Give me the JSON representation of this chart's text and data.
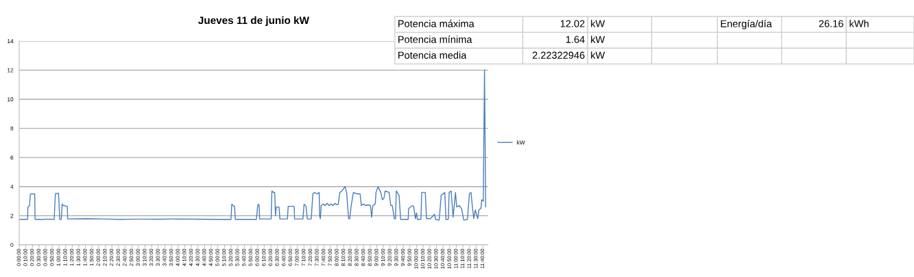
{
  "chart_data": [
    {
      "type": "line",
      "title": "Jueves 11 de junio kW",
      "grid": "y",
      "legend": "right",
      "marker": "none",
      "line_style": "solid",
      "xlim": [
        0,
        11.8
      ],
      "ylim": [
        0,
        14
      ],
      "yticks": [
        0,
        2,
        4,
        6,
        8,
        10,
        12,
        14
      ],
      "xticks": [
        {
          "value": 0,
          "label": "0:00:00"
        },
        {
          "value": 0.1667,
          "label": "0:10:00"
        },
        {
          "value": 0.3333,
          "label": "0:20:00"
        },
        {
          "value": 0.5,
          "label": "0:30:00"
        },
        {
          "value": 0.6667,
          "label": "0:40:00"
        },
        {
          "value": 0.8333,
          "label": "0:50:00"
        },
        {
          "value": 1,
          "label": "1:00:00"
        },
        {
          "value": 1.1667,
          "label": "1:10:00"
        },
        {
          "value": 1.3333,
          "label": "1:20:00"
        },
        {
          "value": 1.5,
          "label": "1:30:00"
        },
        {
          "value": 1.6667,
          "label": "1:40:00"
        },
        {
          "value": 1.8333,
          "label": "1:50:00"
        },
        {
          "value": 2,
          "label": "2:00:00"
        },
        {
          "value": 2.1667,
          "label": "2:10:00"
        },
        {
          "value": 2.3333,
          "label": "2:20:00"
        },
        {
          "value": 2.5,
          "label": "2:30:00"
        },
        {
          "value": 2.6667,
          "label": "2:40:00"
        },
        {
          "value": 2.8333,
          "label": "2:50:00"
        },
        {
          "value": 3,
          "label": "3:00:00"
        },
        {
          "value": 3.1667,
          "label": "3:10:00"
        },
        {
          "value": 3.3333,
          "label": "3:20:00"
        },
        {
          "value": 3.5,
          "label": "3:30:00"
        },
        {
          "value": 3.6667,
          "label": "3:40:00"
        },
        {
          "value": 3.8333,
          "label": "3:50:00"
        },
        {
          "value": 4,
          "label": "4:00:00"
        },
        {
          "value": 4.1667,
          "label": "4:10:00"
        },
        {
          "value": 4.3333,
          "label": "4:20:00"
        },
        {
          "value": 4.5,
          "label": "4:30:00"
        },
        {
          "value": 4.6667,
          "label": "4:40:00"
        },
        {
          "value": 4.8333,
          "label": "4:50:00"
        },
        {
          "value": 5,
          "label": "5:00:00"
        },
        {
          "value": 5.1667,
          "label": "5:10:00"
        },
        {
          "value": 5.3333,
          "label": "5:20:00"
        },
        {
          "value": 5.5,
          "label": "5:30:00"
        },
        {
          "value": 5.6667,
          "label": "5:40:00"
        },
        {
          "value": 5.8333,
          "label": "5:50:00"
        },
        {
          "value": 6,
          "label": "6:00:00"
        },
        {
          "value": 6.1667,
          "label": "6:10:00"
        },
        {
          "value": 6.3333,
          "label": "6:20:00"
        },
        {
          "value": 6.5,
          "label": "6:30:00"
        },
        {
          "value": 6.6667,
          "label": "6:40:00"
        },
        {
          "value": 6.8333,
          "label": "6:50:00"
        },
        {
          "value": 7,
          "label": "7:00:00"
        },
        {
          "value": 7.1667,
          "label": "7:10:00"
        },
        {
          "value": 7.3333,
          "label": "7:20:00"
        },
        {
          "value": 7.5,
          "label": "7:30:00"
        },
        {
          "value": 7.6667,
          "label": "7:40:00"
        },
        {
          "value": 7.8333,
          "label": "7:50:00"
        },
        {
          "value": 8,
          "label": "8:00:00"
        },
        {
          "value": 8.1667,
          "label": "8:10:00"
        },
        {
          "value": 8.3333,
          "label": "8:20:00"
        },
        {
          "value": 8.5,
          "label": "8:30:00"
        },
        {
          "value": 8.6667,
          "label": "8:40:00"
        },
        {
          "value": 8.8333,
          "label": "8:50:00"
        },
        {
          "value": 9,
          "label": "9:00:00"
        },
        {
          "value": 9.1667,
          "label": "9:10:00"
        },
        {
          "value": 9.3333,
          "label": "9:20:00"
        },
        {
          "value": 9.5,
          "label": "9:30:00"
        },
        {
          "value": 9.6667,
          "label": "9:40:00"
        },
        {
          "value": 9.8333,
          "label": "9:50:00"
        },
        {
          "value": 10,
          "label": "10:00:00"
        },
        {
          "value": 10.1667,
          "label": "10:10:00"
        },
        {
          "value": 10.3333,
          "label": "10:20:00"
        },
        {
          "value": 10.5,
          "label": "10:30:00"
        },
        {
          "value": 10.6667,
          "label": "10:40:00"
        },
        {
          "value": 10.8333,
          "label": "10:50:00"
        },
        {
          "value": 11,
          "label": "11:00:00"
        },
        {
          "value": 11.1667,
          "label": "11:10:00"
        },
        {
          "value": 11.3333,
          "label": "11:20:00"
        },
        {
          "value": 11.5,
          "label": "11:30:00"
        },
        {
          "value": 11.6667,
          "label": "11:40:00"
        }
      ],
      "series": [
        {
          "name": "kW",
          "color": "#4a7ebb",
          "x": [
            0,
            0.21,
            0.22,
            0.26,
            0.28,
            0.3,
            0.39,
            0.4,
            0.6,
            0.7,
            0.88,
            0.91,
            0.99,
            1.02,
            1.06,
            1.08,
            1.11,
            1.21,
            1.22,
            1.7,
            2.1,
            2.5,
            3.0,
            3.5,
            4.0,
            4.5,
            5.0,
            5.33,
            5.35,
            5.38,
            5.42,
            5.44,
            5.97,
            6.0,
            6.02,
            6.04,
            6.05,
            6.34,
            6.36,
            6.4,
            6.43,
            6.45,
            6.47,
            6.54,
            6.56,
            6.75,
            6.77,
            6.92,
            6.93,
            7.14,
            7.17,
            7.22,
            7.25,
            7.35,
            7.39,
            7.43,
            7.5,
            7.55,
            7.56,
            7.58,
            7.6,
            7.65,
            7.7,
            7.75,
            7.8,
            7.85,
            7.9,
            7.95,
            8.0,
            8.03,
            8.07,
            8.12,
            8.2,
            8.24,
            8.29,
            8.32,
            8.35,
            8.41,
            8.5,
            8.58,
            8.61,
            8.66,
            8.72,
            8.78,
            8.84,
            8.87,
            8.9,
            8.96,
            8.98,
            9.03,
            9.1,
            9.14,
            9.18,
            9.21,
            9.31,
            9.35,
            9.39,
            9.44,
            9.47,
            9.49,
            9.56,
            9.6,
            9.79,
            9.8,
            9.9,
            9.93,
            9.97,
            10.0,
            10.02,
            10.11,
            10.13,
            10.22,
            10.25,
            10.35,
            10.4,
            10.45,
            10.48,
            10.57,
            10.62,
            10.71,
            10.74,
            10.8,
            10.82,
            10.87,
            10.92,
            10.98,
            11.01,
            11.07,
            11.13,
            11.19,
            11.28,
            11.33,
            11.37,
            11.41,
            11.44,
            11.48,
            11.54,
            11.57,
            11.62,
            11.64,
            11.68,
            11.71,
            11.74
          ],
          "values": [
            1.75,
            1.75,
            2.6,
            2.7,
            3.45,
            3.5,
            3.5,
            1.75,
            1.75,
            1.77,
            1.75,
            3.5,
            3.55,
            1.75,
            1.75,
            2.8,
            2.7,
            2.65,
            1.78,
            1.8,
            1.78,
            1.75,
            1.77,
            1.76,
            1.78,
            1.76,
            1.75,
            1.75,
            2.8,
            2.7,
            2.65,
            1.75,
            1.75,
            2.65,
            2.8,
            2.7,
            1.78,
            1.78,
            3.7,
            3.6,
            3.6,
            2.0,
            2.6,
            2.6,
            1.78,
            1.78,
            2.65,
            2.65,
            1.78,
            1.78,
            2.8,
            2.65,
            1.78,
            1.78,
            3.5,
            3.6,
            3.5,
            3.6,
            2.0,
            1.8,
            2.7,
            2.8,
            2.7,
            2.85,
            2.7,
            2.8,
            2.7,
            2.85,
            2.75,
            2.8,
            3.6,
            3.7,
            4.0,
            3.6,
            1.8,
            1.8,
            2.6,
            3.6,
            3.5,
            3.5,
            2.7,
            2.8,
            2.7,
            2.75,
            2.7,
            1.9,
            2.7,
            2.8,
            3.6,
            4.0,
            3.6,
            3.1,
            3.2,
            3.7,
            3.6,
            2.7,
            2.7,
            1.8,
            1.8,
            3.7,
            3.4,
            1.75,
            1.75,
            2.5,
            2.7,
            2.6,
            1.8,
            2.2,
            1.75,
            1.75,
            3.6,
            3.6,
            1.8,
            1.8,
            1.95,
            2.1,
            1.75,
            1.7,
            3.4,
            3.6,
            1.75,
            1.75,
            3.6,
            3.7,
            1.9,
            3.6,
            2.6,
            2.7,
            2.5,
            1.7,
            1.75,
            3.5,
            3.6,
            2.5,
            1.8,
            2.4,
            1.8,
            2.4,
            2.5,
            3.1,
            3.0,
            12.02,
            2.6
          ]
        }
      ]
    },
    {
      "type": "other",
      "annotations": [
        "Potencia máxima",
        "12.02",
        "kW",
        "Energía/día",
        "26.16",
        "kWh",
        "Potencia mínima",
        "1.64",
        "kW",
        "Potencia media",
        "2.22322946",
        "kW"
      ]
    }
  ]
}
